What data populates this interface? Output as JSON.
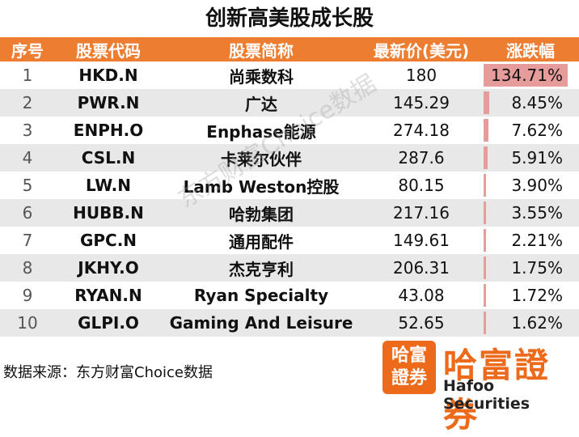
{
  "title": "创新高美股成长股",
  "headers": [
    "序号",
    "股票代码",
    "股票简称",
    "最新价(美元)",
    "涨跌幅"
  ],
  "chart_data": {
    "type": "table",
    "columns": [
      "序号",
      "股票代码",
      "股票简称",
      "最新价(美元)",
      "涨跌幅"
    ],
    "rows": [
      {
        "idx": "1",
        "code": "HKD.N",
        "name": "尚乘数科",
        "price": "180",
        "pct": "134.71%",
        "pct_value": 134.71
      },
      {
        "idx": "2",
        "code": "PWR.N",
        "name": "广达",
        "price": "145.29",
        "pct": "8.45%",
        "pct_value": 8.45
      },
      {
        "idx": "3",
        "code": "ENPH.O",
        "name": "Enphase能源",
        "price": "274.18",
        "pct": "7.62%",
        "pct_value": 7.62
      },
      {
        "idx": "4",
        "code": "CSL.N",
        "name": "卡莱尔伙伴",
        "price": "287.6",
        "pct": "5.91%",
        "pct_value": 5.91
      },
      {
        "idx": "5",
        "code": "LW.N",
        "name": "Lamb Weston控股",
        "price": "80.15",
        "pct": "3.90%",
        "pct_value": 3.9
      },
      {
        "idx": "6",
        "code": "HUBB.N",
        "name": "哈勃集团",
        "price": "217.16",
        "pct": "3.55%",
        "pct_value": 3.55
      },
      {
        "idx": "7",
        "code": "GPC.N",
        "name": "通用配件",
        "price": "149.61",
        "pct": "2.21%",
        "pct_value": 2.21
      },
      {
        "idx": "8",
        "code": "JKHY.O",
        "name": "杰克亨利",
        "price": "206.31",
        "pct": "1.75%",
        "pct_value": 1.75
      },
      {
        "idx": "9",
        "code": "RYAN.N",
        "name": "Ryan Specialty",
        "price": "43.08",
        "pct": "1.72%",
        "pct_value": 1.72
      },
      {
        "idx": "10",
        "code": "GLPI.O",
        "name": "Gaming And Leisure",
        "price": "52.65",
        "pct": "1.62%",
        "pct_value": 1.62
      }
    ],
    "bar_color": "#e79c9c",
    "header_color": "#ed7d31"
  },
  "watermark": "东方财富Choice数据",
  "source": "数据来源：东方财富Choice数据",
  "logo": {
    "badge_line1": "哈富",
    "badge_line2": "證券",
    "name_cn": "哈富證券",
    "name_en": "Hafoo Securities",
    "color": "#ed6a1b"
  }
}
